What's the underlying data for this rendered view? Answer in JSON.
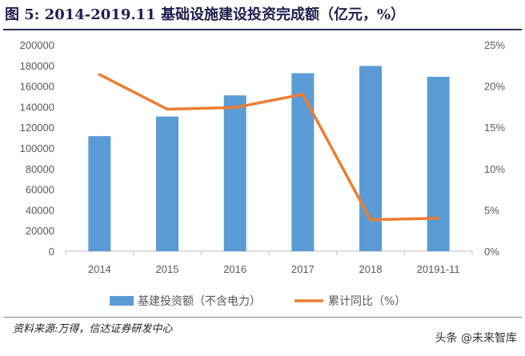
{
  "page": {
    "title": "图 5:  2014-2019.11 基础设施建设投资完成额（亿元，%）",
    "source": "资料来源:万得，信达证券研发中心",
    "watermark": "头条 @未来智库"
  },
  "colors": {
    "bar": "#5b9bd5",
    "line": "#ed7d31",
    "axis": "#bfbfbf",
    "text": "#595959"
  },
  "chart_data": {
    "type": "bar",
    "categories": [
      "2014",
      "2015",
      "2016",
      "2017",
      "2018",
      "20191-11"
    ],
    "series": [
      {
        "name": "基建投资额（不含电力）",
        "type": "bar",
        "axis": "left",
        "values": [
          111500,
          130500,
          151000,
          172500,
          179500,
          169000
        ]
      },
      {
        "name": "累计同比（%）",
        "type": "line",
        "axis": "right",
        "values": [
          21.4,
          17.2,
          17.4,
          19.0,
          3.8,
          4.0
        ]
      }
    ],
    "left_axis": {
      "ylim": [
        0,
        200000
      ],
      "ticks": [
        "0",
        "20000",
        "40000",
        "60000",
        "80000",
        "100000",
        "120000",
        "140000",
        "160000",
        "180000",
        "200000"
      ]
    },
    "right_axis": {
      "ylim": [
        0,
        25
      ],
      "ticks": [
        "0%",
        "5%",
        "10%",
        "15%",
        "20%",
        "25%"
      ]
    },
    "legend_position": "bottom",
    "grid": false
  }
}
